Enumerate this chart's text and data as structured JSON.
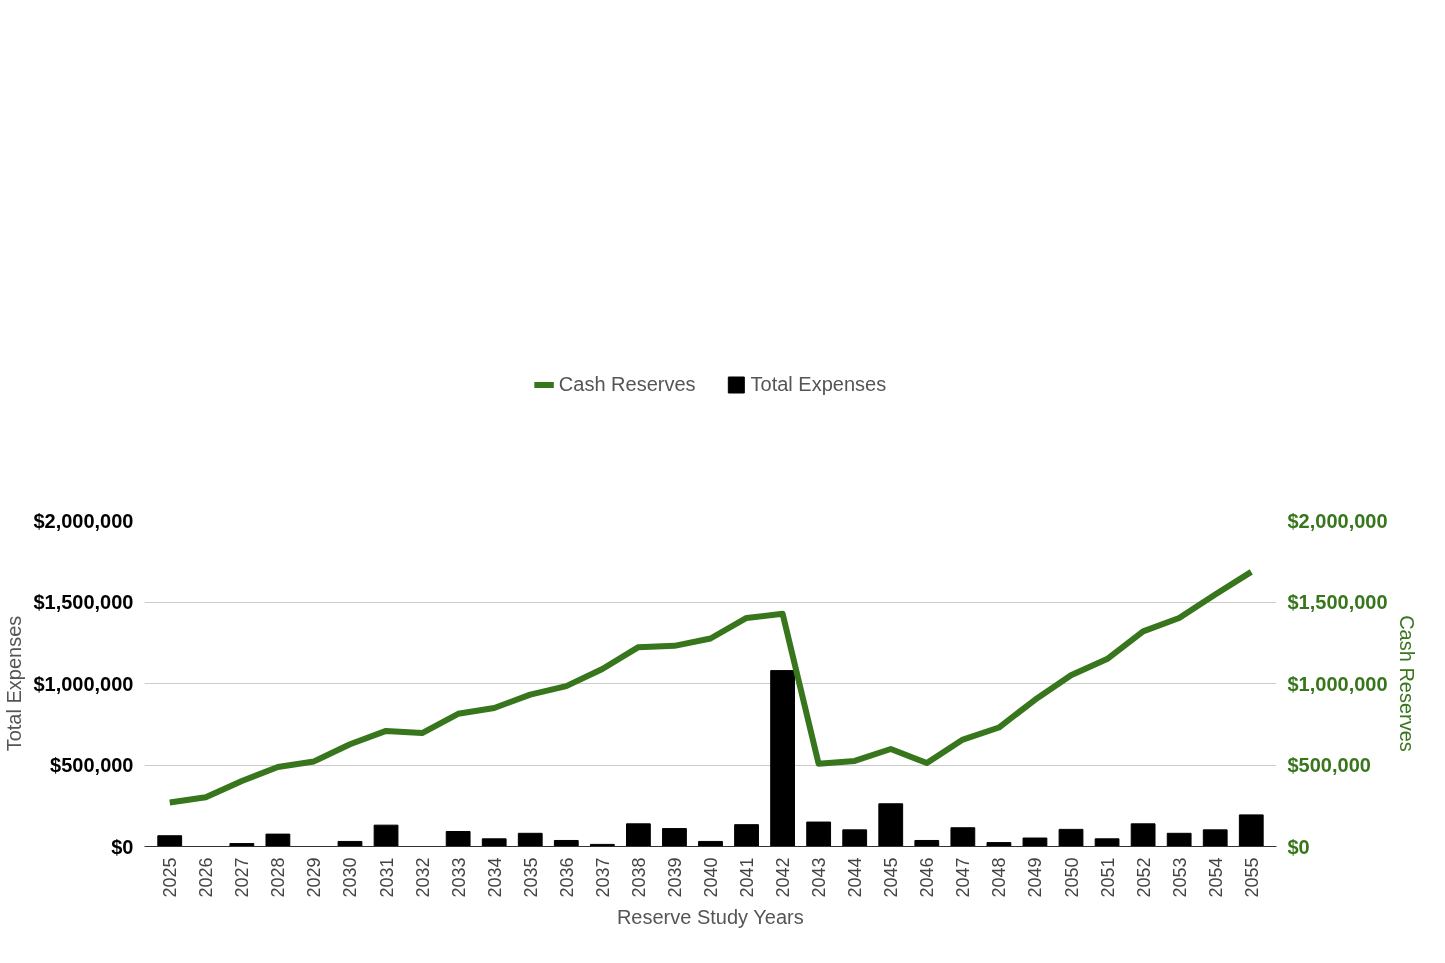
{
  "chart_data": {
    "type": "bar",
    "xlabel": "Reserve Study Years",
    "ylabel": "Total Expenses",
    "y2label": "Cash Reserves",
    "categories": [
      "2025",
      "2026",
      "2027",
      "2028",
      "2029",
      "2030",
      "2031",
      "2032",
      "2033",
      "2034",
      "2035",
      "2036",
      "2037",
      "2038",
      "2039",
      "2040",
      "2041",
      "2042",
      "2043",
      "2044",
      "2045",
      "2046",
      "2047",
      "2048",
      "2049",
      "2050",
      "2051",
      "2052",
      "2053",
      "2054",
      "2055"
    ],
    "series": [
      {
        "name": "Cash Reserves",
        "type": "line",
        "axis": "y2",
        "color": "#38761d",
        "values": [
          270000,
          302000,
          402000,
          488000,
          522000,
          627000,
          709000,
          696000,
          814000,
          850000,
          932000,
          984000,
          1089000,
          1223000,
          1231000,
          1276000,
          1402000,
          1428000,
          507000,
          525000,
          598000,
          512000,
          656000,
          730000,
          900000,
          1050000,
          1150000,
          1320000,
          1402000,
          1546000,
          1685000
        ]
      },
      {
        "name": "Total Expenses",
        "color": "#000000",
        "values": [
          66000,
          0,
          18000,
          76000,
          null,
          31000,
          131000,
          null,
          92000,
          47000,
          81000,
          37000,
          13000,
          139000,
          110000,
          31000,
          134000,
          1079000,
          150000,
          102000,
          262000,
          37000,
          115000,
          24000,
          52000,
          105000,
          47000,
          139000,
          81000,
          102000,
          194000
        ]
      }
    ],
    "ylim": [
      0,
      2000000
    ],
    "yticks": [
      {
        "value": 0,
        "label": "$0"
      },
      {
        "value": 500000,
        "label": "$500,000"
      },
      {
        "value": 1000000,
        "label": "$1,000,000"
      },
      {
        "value": 1500000,
        "label": "$1,500,000"
      },
      {
        "value": 2000000,
        "label": "$2,000,000"
      }
    ],
    "y2lim": [
      0,
      2000000
    ],
    "y2ticks": [
      {
        "value": 0,
        "label": "$0"
      },
      {
        "value": 500000,
        "label": "$500,000"
      },
      {
        "value": 1000000,
        "label": "$1,000,000"
      },
      {
        "value": 1500000,
        "label": "$1,500,000"
      },
      {
        "value": 2000000,
        "label": "$2,000,000"
      }
    ],
    "grid": "y",
    "legend": "top"
  }
}
